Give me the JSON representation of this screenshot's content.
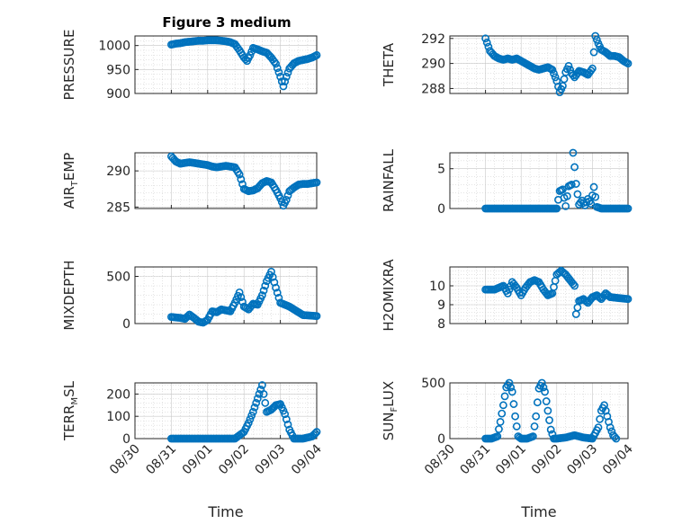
{
  "figure": {
    "title": "Figure 3 medium",
    "colors": {
      "marker": "#0072bd",
      "axis": "#262626",
      "grid": "#c8c8c8"
    }
  },
  "chart_data": [
    {
      "type": "scatter",
      "title": "Figure 3 medium",
      "ylabel": "PRESSURE",
      "xlim": [
        "08/30",
        "09/04"
      ],
      "ylim": [
        900,
        1020
      ],
      "yticks": [
        900,
        950,
        1000
      ],
      "xticks": [],
      "xlabel": "",
      "grid": true,
      "points": [
        [
          "08/31 00:00",
          1002
        ],
        [
          "08/31 03:00",
          1004
        ],
        [
          "08/31 06:00",
          1005
        ],
        [
          "08/31 09:00",
          1007
        ],
        [
          "08/31 12:00",
          1008
        ],
        [
          "08/31 15:00",
          1009
        ],
        [
          "08/31 18:00",
          1010
        ],
        [
          "08/31 21:00",
          1010
        ],
        [
          "09/01 00:00",
          1011
        ],
        [
          "09/01 03:00",
          1011
        ],
        [
          "09/01 06:00",
          1011
        ],
        [
          "09/01 09:00",
          1010
        ],
        [
          "09/01 12:00",
          1009
        ],
        [
          "09/01 15:00",
          1007
        ],
        [
          "09/01 18:00",
          1003
        ],
        [
          "09/01 21:00",
          990
        ],
        [
          "09/02 00:00",
          975
        ],
        [
          "09/02 02:00",
          968
        ],
        [
          "09/02 04:00",
          980
        ],
        [
          "09/02 06:00",
          995
        ],
        [
          "09/02 09:00",
          992
        ],
        [
          "09/02 12:00",
          988
        ],
        [
          "09/02 15:00",
          985
        ],
        [
          "09/02 18:00",
          975
        ],
        [
          "09/02 21:00",
          962
        ],
        [
          "09/03 00:00",
          935
        ],
        [
          "09/03 02:00",
          915
        ],
        [
          "09/03 04:00",
          935
        ],
        [
          "09/03 06:00",
          952
        ],
        [
          "09/03 09:00",
          963
        ],
        [
          "09/03 12:00",
          968
        ],
        [
          "09/03 15:00",
          970
        ],
        [
          "09/03 18:00",
          972
        ],
        [
          "09/03 21:00",
          975
        ],
        [
          "09/04 00:00",
          980
        ]
      ]
    },
    {
      "type": "scatter",
      "ylabel": "THETA",
      "xlim": [
        "08/30",
        "09/04"
      ],
      "ylim": [
        287.6,
        292.2
      ],
      "yticks": [
        288,
        290,
        292
      ],
      "xticks": [],
      "xlabel": "",
      "grid": true,
      "points": [
        [
          "08/31 00:00",
          292.0
        ],
        [
          "08/31 03:00",
          291.0
        ],
        [
          "08/31 06:00",
          290.6
        ],
        [
          "08/31 09:00",
          290.4
        ],
        [
          "08/31 12:00",
          290.3
        ],
        [
          "08/31 15:00",
          290.4
        ],
        [
          "08/31 18:00",
          290.3
        ],
        [
          "08/31 21:00",
          290.4
        ],
        [
          "09/01 00:00",
          290.2
        ],
        [
          "09/01 03:00",
          290.0
        ],
        [
          "09/01 06:00",
          289.8
        ],
        [
          "09/01 09:00",
          289.6
        ],
        [
          "09/01 12:00",
          289.5
        ],
        [
          "09/01 15:00",
          289.6
        ],
        [
          "09/01 18:00",
          289.7
        ],
        [
          "09/01 21:00",
          289.5
        ],
        [
          "09/02 00:00",
          288.6
        ],
        [
          "09/02 02:00",
          287.7
        ],
        [
          "09/02 04:00",
          288.2
        ],
        [
          "09/02 06:00",
          289.3
        ],
        [
          "09/02 08:00",
          289.8
        ],
        [
          "09/02 10:00",
          289.2
        ],
        [
          "09/02 12:00",
          288.9
        ],
        [
          "09/02 15:00",
          289.4
        ],
        [
          "09/02 18:00",
          289.3
        ],
        [
          "09/02 21:00",
          289.1
        ],
        [
          "09/03 00:00",
          289.6
        ],
        [
          "09/03 02:00",
          292.2
        ],
        [
          "09/03 04:00",
          291.6
        ],
        [
          "09/03 06:00",
          291.1
        ],
        [
          "09/03 09:00",
          290.9
        ],
        [
          "09/03 12:00",
          290.6
        ],
        [
          "09/03 15:00",
          290.6
        ],
        [
          "09/03 18:00",
          290.5
        ],
        [
          "09/03 21:00",
          290.2
        ],
        [
          "09/04 00:00",
          290.0
        ]
      ]
    },
    {
      "type": "scatter",
      "ylabel": "AIR_TEMP",
      "xlim": [
        "08/30",
        "09/04"
      ],
      "ylim": [
        284.8,
        292.5
      ],
      "yticks": [
        285,
        290
      ],
      "xticks": [],
      "xlabel": "",
      "grid": true,
      "points": [
        [
          "08/31 00:00",
          292.0
        ],
        [
          "08/31 03:00",
          291.3
        ],
        [
          "08/31 06:00",
          291.0
        ],
        [
          "08/31 09:00",
          291.1
        ],
        [
          "08/31 12:00",
          291.2
        ],
        [
          "08/31 15:00",
          291.1
        ],
        [
          "08/31 18:00",
          291.0
        ],
        [
          "08/31 21:00",
          290.9
        ],
        [
          "09/01 00:00",
          290.8
        ],
        [
          "09/01 03:00",
          290.6
        ],
        [
          "09/01 06:00",
          290.5
        ],
        [
          "09/01 09:00",
          290.6
        ],
        [
          "09/01 12:00",
          290.7
        ],
        [
          "09/01 15:00",
          290.6
        ],
        [
          "09/01 18:00",
          290.5
        ],
        [
          "09/01 21:00",
          289.5
        ],
        [
          "09/02 00:00",
          287.5
        ],
        [
          "09/02 03:00",
          287.2
        ],
        [
          "09/02 06:00",
          287.3
        ],
        [
          "09/02 09:00",
          287.6
        ],
        [
          "09/02 12:00",
          288.3
        ],
        [
          "09/02 15:00",
          288.6
        ],
        [
          "09/02 18:00",
          288.4
        ],
        [
          "09/02 21:00",
          287.4
        ],
        [
          "09/03 00:00",
          286.2
        ],
        [
          "09/03 02:00",
          285.2
        ],
        [
          "09/03 04:00",
          286.0
        ],
        [
          "09/03 06:00",
          287.2
        ],
        [
          "09/03 09:00",
          287.7
        ],
        [
          "09/03 12:00",
          288.1
        ],
        [
          "09/03 15:00",
          288.2
        ],
        [
          "09/03 18:00",
          288.2
        ],
        [
          "09/03 21:00",
          288.3
        ],
        [
          "09/04 00:00",
          288.4
        ]
      ]
    },
    {
      "type": "scatter",
      "ylabel": "RAINFALL",
      "xlim": [
        "08/30",
        "09/04"
      ],
      "ylim": [
        0,
        7
      ],
      "yticks": [
        0,
        5
      ],
      "xticks": [],
      "xlabel": "",
      "grid": true,
      "points": [
        [
          "08/31 00:00",
          0
        ],
        [
          "08/31 06:00",
          0
        ],
        [
          "08/31 12:00",
          0
        ],
        [
          "08/31 18:00",
          0
        ],
        [
          "09/01 00:00",
          0
        ],
        [
          "09/01 06:00",
          0
        ],
        [
          "09/01 12:00",
          0
        ],
        [
          "09/01 18:00",
          0
        ],
        [
          "09/02 00:00",
          0
        ],
        [
          "09/02 02:00",
          2.2
        ],
        [
          "09/02 04:00",
          2.4
        ],
        [
          "09/02 06:00",
          0.3
        ],
        [
          "09/02 08:00",
          2.8
        ],
        [
          "09/02 10:00",
          3.0
        ],
        [
          "09/02 11:00",
          7.0
        ],
        [
          "09/02 12:00",
          5.2
        ],
        [
          "09/02 13:00",
          3.1
        ],
        [
          "09/02 15:00",
          0.5
        ],
        [
          "09/02 17:00",
          1.0
        ],
        [
          "09/02 19:00",
          0.4
        ],
        [
          "09/02 21:00",
          1.2
        ],
        [
          "09/02 23:00",
          0.6
        ],
        [
          "09/03 01:00",
          2.7
        ],
        [
          "09/03 03:00",
          0.2
        ],
        [
          "09/03 06:00",
          0
        ],
        [
          "09/03 12:00",
          0
        ],
        [
          "09/03 18:00",
          0
        ],
        [
          "09/04 00:00",
          0
        ]
      ]
    },
    {
      "type": "scatter",
      "ylabel": "MIXDEPTH",
      "xlim": [
        "08/30",
        "09/04"
      ],
      "ylim": [
        0,
        600
      ],
      "yticks": [
        0,
        500
      ],
      "xticks": [],
      "xlabel": "",
      "grid": true,
      "points": [
        [
          "08/31 00:00",
          70
        ],
        [
          "08/31 03:00",
          65
        ],
        [
          "08/31 06:00",
          60
        ],
        [
          "08/31 09:00",
          50
        ],
        [
          "08/31 12:00",
          95
        ],
        [
          "08/31 15:00",
          60
        ],
        [
          "08/31 18:00",
          20
        ],
        [
          "08/31 21:00",
          10
        ],
        [
          "09/01 00:00",
          40
        ],
        [
          "09/01 03:00",
          130
        ],
        [
          "09/01 06:00",
          120
        ],
        [
          "09/01 09:00",
          150
        ],
        [
          "09/01 12:00",
          140
        ],
        [
          "09/01 15:00",
          130
        ],
        [
          "09/01 18:00",
          220
        ],
        [
          "09/01 21:00",
          330
        ],
        [
          "09/02 00:00",
          180
        ],
        [
          "09/02 03:00",
          150
        ],
        [
          "09/02 06:00",
          210
        ],
        [
          "09/02 09:00",
          200
        ],
        [
          "09/02 12:00",
          300
        ],
        [
          "09/02 15:00",
          450
        ],
        [
          "09/02 18:00",
          550
        ],
        [
          "09/02 21:00",
          380
        ],
        [
          "09/03 00:00",
          220
        ],
        [
          "09/03 03:00",
          200
        ],
        [
          "09/03 06:00",
          180
        ],
        [
          "09/03 09:00",
          150
        ],
        [
          "09/03 12:00",
          120
        ],
        [
          "09/03 15:00",
          90
        ],
        [
          "09/04 00:00",
          80
        ]
      ]
    },
    {
      "type": "scatter",
      "ylabel": "H2OMIXRA",
      "xlim": [
        "08/30",
        "09/04"
      ],
      "ylim": [
        8,
        11
      ],
      "yticks": [
        8,
        9,
        10
      ],
      "xticks": [],
      "xlabel": "",
      "grid": true,
      "points": [
        [
          "08/31 00:00",
          9.8
        ],
        [
          "08/31 03:00",
          9.8
        ],
        [
          "08/31 06:00",
          9.8
        ],
        [
          "08/31 09:00",
          9.9
        ],
        [
          "08/31 12:00",
          10.0
        ],
        [
          "08/31 15:00",
          9.6
        ],
        [
          "08/31 18:00",
          10.2
        ],
        [
          "08/31 21:00",
          9.9
        ],
        [
          "09/01 00:00",
          9.5
        ],
        [
          "09/01 03:00",
          9.9
        ],
        [
          "09/01 06:00",
          10.2
        ],
        [
          "09/01 09:00",
          10.3
        ],
        [
          "09/01 12:00",
          10.2
        ],
        [
          "09/01 15:00",
          9.8
        ],
        [
          "09/01 18:00",
          9.5
        ],
        [
          "09/01 21:00",
          9.6
        ],
        [
          "09/02 00:00",
          10.6
        ],
        [
          "09/02 03:00",
          10.8
        ],
        [
          "09/02 06:00",
          10.6
        ],
        [
          "09/02 09:00",
          10.3
        ],
        [
          "09/02 12:00",
          10.0
        ],
        [
          "09/02 13:00",
          8.5
        ],
        [
          "09/02 15:00",
          9.2
        ],
        [
          "09/02 18:00",
          9.3
        ],
        [
          "09/02 21:00",
          9.1
        ],
        [
          "09/03 00:00",
          9.4
        ],
        [
          "09/03 03:00",
          9.5
        ],
        [
          "09/03 06:00",
          9.3
        ],
        [
          "09/03 09:00",
          9.6
        ],
        [
          "09/03 12:00",
          9.4
        ],
        [
          "09/04 00:00",
          9.3
        ]
      ]
    },
    {
      "type": "scatter",
      "ylabel": "TERR_MSL",
      "xlim": [
        "08/30",
        "09/04"
      ],
      "ylim": [
        0,
        250
      ],
      "yticks": [
        0,
        100,
        200
      ],
      "xticks": [
        "08/30",
        "08/31",
        "09/01",
        "09/02",
        "09/03",
        "09/04"
      ],
      "xlabel": "Time",
      "grid": true,
      "points": [
        [
          "08/31 00:00",
          0
        ],
        [
          "08/31 06:00",
          0
        ],
        [
          "08/31 12:00",
          0
        ],
        [
          "08/31 18:00",
          0
        ],
        [
          "09/01 00:00",
          0
        ],
        [
          "09/01 06:00",
          0
        ],
        [
          "09/01 12:00",
          0
        ],
        [
          "09/01 18:00",
          0
        ],
        [
          "09/02 00:00",
          30
        ],
        [
          "09/02 03:00",
          70
        ],
        [
          "09/02 06:00",
          120
        ],
        [
          "09/02 09:00",
          180
        ],
        [
          "09/02 12:00",
          240
        ],
        [
          "09/02 15:00",
          120
        ],
        [
          "09/02 18:00",
          130
        ],
        [
          "09/02 21:00",
          150
        ],
        [
          "09/03 00:00",
          155
        ],
        [
          "09/03 03:00",
          110
        ],
        [
          "09/03 06:00",
          40
        ],
        [
          "09/03 09:00",
          0
        ],
        [
          "09/03 15:00",
          0
        ],
        [
          "09/03 21:00",
          10
        ],
        [
          "09/04 00:00",
          30
        ]
      ]
    },
    {
      "type": "scatter",
      "ylabel": "SUN_FLUX",
      "xlim": [
        "08/30",
        "09/04"
      ],
      "ylim": [
        0,
        500
      ],
      "yticks": [
        0,
        500
      ],
      "xticks": [
        "08/30",
        "08/31",
        "09/01",
        "09/02",
        "09/03",
        "09/04"
      ],
      "xlabel": "Time",
      "grid": true,
      "points": [
        [
          "08/31 00:00",
          0
        ],
        [
          "08/31 04:00",
          0
        ],
        [
          "08/31 08:00",
          20
        ],
        [
          "08/31 10:00",
          150
        ],
        [
          "08/31 12:00",
          300
        ],
        [
          "08/31 14:00",
          460
        ],
        [
          "08/31 16:00",
          500
        ],
        [
          "08/31 18:00",
          420
        ],
        [
          "08/31 20:00",
          200
        ],
        [
          "08/31 22:00",
          20
        ],
        [
          "09/01 00:00",
          0
        ],
        [
          "09/01 04:00",
          0
        ],
        [
          "09/01 08:00",
          20
        ],
        [
          "09/01 10:00",
          200
        ],
        [
          "09/01 12:00",
          450
        ],
        [
          "09/01 14:00",
          500
        ],
        [
          "09/01 16:00",
          420
        ],
        [
          "09/01 18:00",
          250
        ],
        [
          "09/01 20:00",
          80
        ],
        [
          "09/01 22:00",
          0
        ],
        [
          "09/02 00:00",
          0
        ],
        [
          "09/02 06:00",
          10
        ],
        [
          "09/02 12:00",
          30
        ],
        [
          "09/02 18:00",
          10
        ],
        [
          "09/03 00:00",
          0
        ],
        [
          "09/03 04:00",
          100
        ],
        [
          "09/03 06:00",
          250
        ],
        [
          "09/03 08:00",
          300
        ],
        [
          "09/03 10:00",
          200
        ],
        [
          "09/03 12:00",
          100
        ],
        [
          "09/03 14:00",
          30
        ],
        [
          "09/03 16:00",
          0
        ]
      ]
    }
  ]
}
